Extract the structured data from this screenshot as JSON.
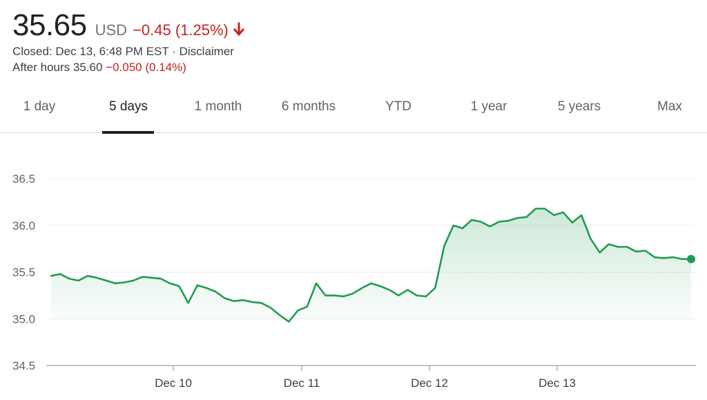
{
  "quote": {
    "price": "35.65",
    "currency": "USD",
    "change": "−0.45 (1.25%)",
    "closed_text": "Closed: Dec 13, 6:48 PM EST",
    "separator": "·",
    "disclaimer": "Disclaimer",
    "after_hours_label": "After hours 35.60",
    "after_hours_change": "−0.050 (0.14%)",
    "negative_color": "#c5221f"
  },
  "tabs": [
    {
      "label": "1 day"
    },
    {
      "label": "5 days",
      "active": true
    },
    {
      "label": "1 month"
    },
    {
      "label": "6 months"
    },
    {
      "label": "YTD"
    },
    {
      "label": "1 year"
    },
    {
      "label": "5 years"
    },
    {
      "label": "Max"
    }
  ],
  "chart_data": {
    "type": "area",
    "title": "",
    "xlabel": "",
    "ylabel": "",
    "ylim": [
      34.5,
      36.6
    ],
    "yticks": [
      "34.5",
      "35.0",
      "35.5",
      "36.0",
      "36.5"
    ],
    "xticks": [
      "Dec 10",
      "Dec 11",
      "Dec 12",
      "Dec 13"
    ],
    "grid": true,
    "line_color": "#1e9c4f",
    "series": [
      {
        "values": [
          35.46,
          35.48,
          35.43,
          35.41,
          35.46,
          35.44,
          35.41,
          35.38,
          35.39,
          35.41,
          35.45,
          35.44,
          35.43,
          35.38,
          35.35,
          35.17,
          35.36,
          35.33,
          35.29,
          35.22,
          35.19,
          35.2,
          35.18,
          35.17,
          35.12,
          35.04,
          34.97,
          35.09,
          35.13,
          35.38,
          35.25,
          35.25,
          35.24,
          35.27,
          35.33,
          35.38,
          35.35,
          35.31,
          35.25,
          35.31,
          35.25,
          35.24,
          35.33,
          35.78,
          36.0,
          35.97,
          36.06,
          36.04,
          35.99,
          36.04,
          36.05,
          36.08,
          36.09,
          36.18,
          36.18,
          36.11,
          36.14,
          36.03,
          36.11,
          35.86,
          35.71,
          35.8,
          35.77,
          35.77,
          35.72,
          35.73,
          35.66,
          35.65,
          35.66,
          35.64,
          35.64
        ]
      }
    ]
  }
}
